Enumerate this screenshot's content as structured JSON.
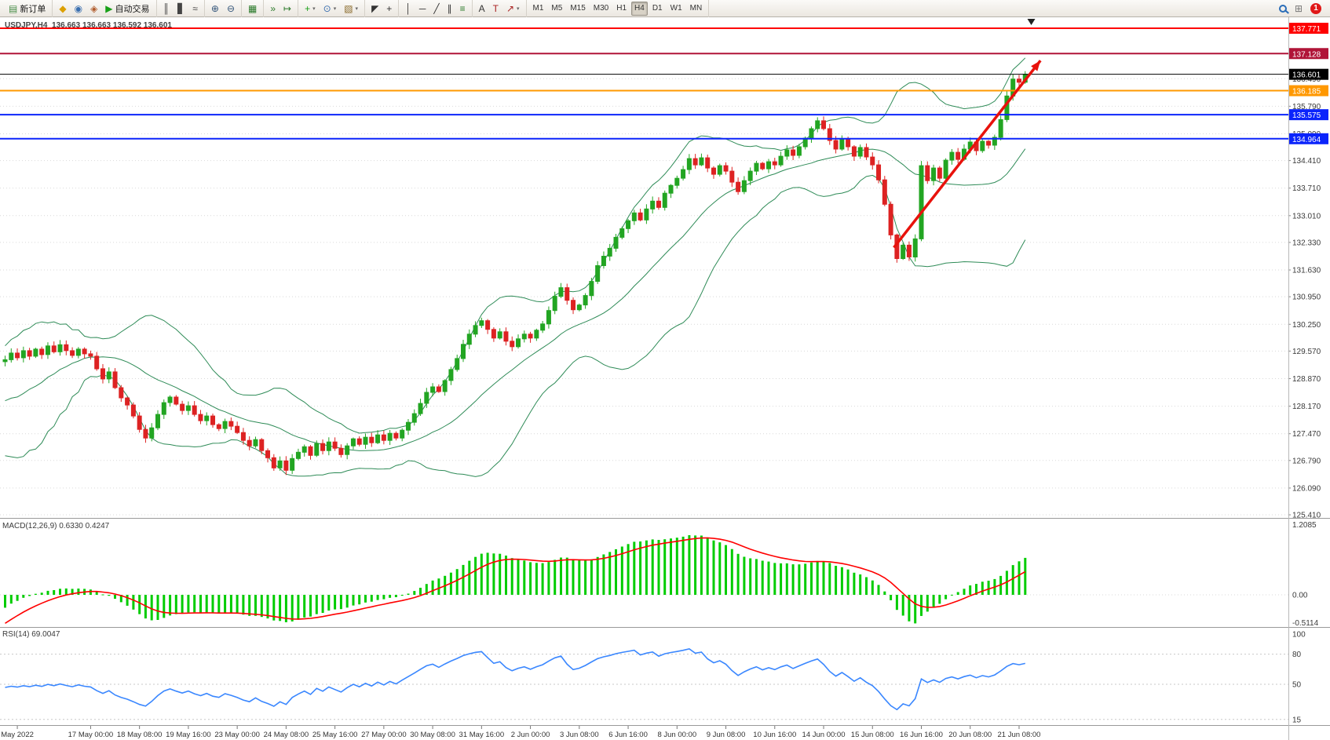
{
  "colors": {
    "bull": "#22a522",
    "bear": "#dd2222",
    "bollinger": "#2e8b57",
    "macd_hist": "#00cc00",
    "macd_signal": "#ff0000",
    "rsi_line": "#3a87ff",
    "arrow": "#e8120c",
    "grid": "#d9d9d9"
  },
  "toolbar": {
    "groups": [
      {
        "name": "toolbar-group-order",
        "items": [
          {
            "name": "new-order-button",
            "icon": "new-order-icon",
            "glyph": "▤",
            "color": "#4a8f4a",
            "label": "新订单"
          }
        ]
      },
      {
        "name": "toolbar-group-apps",
        "items": [
          {
            "name": "metaeditor-button",
            "icon": "metaeditor-icon",
            "glyph": "◆",
            "color": "#dca000"
          },
          {
            "name": "community-button",
            "icon": "community-icon",
            "glyph": "◉",
            "color": "#3a6fb0"
          },
          {
            "name": "market-button",
            "icon": "market-icon",
            "glyph": "◈",
            "color": "#b05a2a"
          },
          {
            "name": "autotrading-button",
            "icon": "autotrading-icon",
            "glyph": "▶",
            "color": "#18a018",
            "label": "自动交易"
          }
        ]
      },
      {
        "name": "toolbar-group-chart-type",
        "items": [
          {
            "name": "bar-chart-button",
            "icon": "bar-chart-icon",
            "glyph": "║",
            "color": "#444444"
          },
          {
            "name": "candlestick-chart-button",
            "icon": "candlestick-chart-icon",
            "glyph": "▋",
            "color": "#444444"
          },
          {
            "name": "line-chart-button",
            "icon": "line-chart-icon",
            "glyph": "≈",
            "color": "#444444"
          }
        ]
      },
      {
        "name": "toolbar-group-zoom",
        "items": [
          {
            "name": "zoom-in-button",
            "icon": "zoom-in-icon",
            "glyph": "⊕",
            "color": "#33557a"
          },
          {
            "name": "zoom-out-button",
            "icon": "zoom-out-icon",
            "glyph": "⊖",
            "color": "#33557a"
          }
        ]
      },
      {
        "name": "toolbar-group-windows",
        "items": [
          {
            "name": "tile-windows-button",
            "icon": "tile-windows-icon",
            "glyph": "▦",
            "color": "#2a7a2a"
          }
        ]
      },
      {
        "name": "toolbar-group-scroll",
        "items": [
          {
            "name": "auto-scroll-button",
            "icon": "auto-scroll-icon",
            "glyph": "»",
            "color": "#2a7a2a"
          },
          {
            "name": "chart-shift-button",
            "icon": "chart-shift-icon",
            "glyph": "↦",
            "color": "#2a7a2a"
          }
        ]
      },
      {
        "name": "toolbar-group-insert",
        "items": [
          {
            "name": "indicators-button",
            "icon": "indicators-icon",
            "glyph": "+",
            "color": "#18a018",
            "caret": true
          },
          {
            "name": "periods-button",
            "icon": "periods-icon",
            "glyph": "⊙",
            "color": "#3a6fb0",
            "caret": true
          },
          {
            "name": "templates-button",
            "icon": "templates-icon",
            "glyph": "▧",
            "color": "#8a6a2a",
            "caret": true
          }
        ]
      },
      {
        "name": "toolbar-group-cursor",
        "items": [
          {
            "name": "cursor-button",
            "icon": "cursor-icon",
            "glyph": "◤",
            "color": "#333333"
          },
          {
            "name": "crosshair-button",
            "icon": "crosshair-icon",
            "glyph": "+",
            "color": "#333333"
          }
        ]
      },
      {
        "name": "toolbar-group-lines",
        "items": [
          {
            "name": "vertical-line-button",
            "icon": "vertical-line-icon",
            "glyph": "│",
            "color": "#333333"
          },
          {
            "name": "horizontal-line-button",
            "icon": "horizontal-line-icon",
            "glyph": "─",
            "color": "#333333"
          },
          {
            "name": "trendline-button",
            "icon": "trendline-icon",
            "glyph": "╱",
            "color": "#333333"
          },
          {
            "name": "channel-button",
            "icon": "channel-icon",
            "glyph": "∥",
            "color": "#333333"
          },
          {
            "name": "fibonacci-button",
            "icon": "fibonacci-icon",
            "glyph": "≡",
            "color": "#2a7a2a"
          }
        ]
      },
      {
        "name": "toolbar-group-text",
        "items": [
          {
            "name": "text-button",
            "icon": "text-icon",
            "glyph": "A",
            "color": "#333333"
          },
          {
            "name": "label-button",
            "icon": "label-icon",
            "glyph": "T",
            "color": "#aa2222"
          },
          {
            "name": "arrows-button",
            "icon": "arrows-icon",
            "glyph": "↗",
            "color": "#aa2222",
            "caret": true
          }
        ]
      },
      {
        "name": "toolbar-group-timeframes",
        "items": [
          {
            "name": "tf-m1-button",
            "label": "M1"
          },
          {
            "name": "tf-m5-button",
            "label": "M5"
          },
          {
            "name": "tf-m15-button",
            "label": "M15"
          },
          {
            "name": "tf-m30-button",
            "label": "M30"
          },
          {
            "name": "tf-h1-button",
            "label": "H1"
          },
          {
            "name": "tf-h4-button",
            "label": "H4",
            "active": true
          },
          {
            "name": "tf-d1-button",
            "label": "D1"
          },
          {
            "name": "tf-w1-button",
            "label": "W1"
          },
          {
            "name": "tf-mn-button",
            "label": "MN"
          }
        ]
      },
      {
        "name": "toolbar-spacer",
        "spacer": true,
        "items": []
      },
      {
        "name": "toolbar-group-status",
        "items": [
          {
            "name": "search-button",
            "icon": "search-icon",
            "css": "magnifier"
          },
          {
            "name": "apps-grid-button",
            "icon": "apps-grid-icon",
            "glyph": "⊞",
            "color": "#777777"
          },
          {
            "name": "notifications-button",
            "icon": "notification-badge",
            "badge": "1"
          }
        ]
      }
    ]
  },
  "chart": {
    "symbol_info": "USDJPY,H4  136.663 136.663 136.592 136.601",
    "grid_labels": [
      "136.490",
      "135.790",
      "135.090",
      "134.410",
      "133.710",
      "133.010",
      "132.330",
      "131.630",
      "130.950",
      "130.250",
      "129.570",
      "128.870",
      "128.170",
      "127.470",
      "126.790",
      "126.090",
      "125.410"
    ]
  },
  "macd": {
    "label": "MACD(12,26,9) 0.6330 0.4247",
    "scale": [
      "1.2085",
      "0.00",
      "-0.5114"
    ]
  },
  "rsi": {
    "label": "RSI(14) 69.0047",
    "scale": [
      "100",
      "80",
      "50",
      "15"
    ],
    "levels": [
      80,
      50,
      15
    ]
  },
  "chart_data": {
    "type": "candlestick",
    "symbol": "USDJPY",
    "timeframe": "H4",
    "ylim": [
      125.41,
      137.771
    ],
    "closes": [
      129.35,
      129.52,
      129.4,
      129.58,
      129.44,
      129.62,
      129.48,
      129.7,
      129.55,
      129.73,
      129.58,
      129.46,
      129.62,
      129.5,
      129.44,
      129.12,
      128.86,
      129.04,
      128.64,
      128.38,
      128.2,
      127.92,
      127.58,
      127.36,
      127.62,
      127.96,
      128.26,
      128.4,
      128.22,
      128.06,
      128.18,
      127.96,
      127.8,
      127.92,
      127.7,
      127.6,
      127.78,
      127.66,
      127.5,
      127.3,
      127.16,
      127.32,
      127.04,
      126.86,
      126.6,
      126.78,
      126.54,
      126.84,
      127.0,
      127.14,
      126.92,
      127.22,
      127.04,
      127.26,
      127.1,
      126.94,
      127.16,
      127.34,
      127.2,
      127.38,
      127.24,
      127.44,
      127.3,
      127.48,
      127.36,
      127.56,
      127.76,
      127.98,
      128.24,
      128.52,
      128.66,
      128.54,
      128.82,
      129.1,
      129.38,
      129.74,
      130.0,
      130.22,
      130.34,
      130.12,
      129.9,
      130.06,
      129.82,
      129.68,
      129.88,
      130.0,
      129.9,
      130.1,
      130.26,
      130.6,
      130.96,
      131.18,
      130.86,
      130.62,
      130.74,
      130.98,
      131.34,
      131.74,
      131.98,
      132.18,
      132.46,
      132.68,
      132.88,
      133.08,
      132.9,
      133.18,
      133.38,
      133.22,
      133.58,
      133.78,
      133.96,
      134.18,
      134.46,
      134.3,
      134.48,
      134.22,
      134.06,
      134.28,
      134.14,
      133.86,
      133.62,
      133.9,
      134.14,
      134.34,
      134.2,
      134.38,
      134.3,
      134.52,
      134.68,
      134.54,
      134.76,
      134.98,
      135.22,
      135.42,
      135.22,
      134.92,
      134.7,
      134.96,
      134.76,
      134.52,
      134.74,
      134.5,
      134.3,
      133.92,
      133.3,
      132.52,
      131.92,
      132.26,
      131.96,
      132.42,
      134.28,
      133.9,
      134.22,
      133.96,
      134.42,
      134.62,
      134.44,
      134.7,
      134.88,
      134.66,
      134.9,
      134.8,
      135.0,
      135.45,
      136.05,
      136.48,
      136.4,
      136.601
    ],
    "history_seed": [
      131.6,
      130.85,
      131.2,
      130.2,
      129.45,
      130.0,
      128.9,
      128.2,
      128.8,
      127.8,
      127.3,
      128.1,
      127.5,
      127.1,
      127.9,
      127.4,
      128.2,
      127.7,
      128.5,
      128.1,
      128.8,
      129.2,
      128.7,
      129.3,
      128.9,
      129.3
    ],
    "indicators": [
      {
        "type": "bollinger",
        "period": 20,
        "deviation": 2
      },
      {
        "type": "macd",
        "fast": 12,
        "slow": 26,
        "signal": 9,
        "current_values": [
          0.633,
          0.4247
        ]
      },
      {
        "type": "rsi",
        "period": 14,
        "current_value": 69.0047
      }
    ],
    "horizontal_lines": [
      {
        "price": 137.771,
        "label": "137.771",
        "color": "#fe0000",
        "width": 2
      },
      {
        "price": 137.128,
        "label": "137.128",
        "color": "#b01438",
        "width": 2
      },
      {
        "price": 136.601,
        "label": "136.601",
        "color": "#000000",
        "width": 1
      },
      {
        "price": 136.185,
        "label": "136.185",
        "color": "#ff9800",
        "width": 2
      },
      {
        "price": 135.575,
        "label": "135.575",
        "color": "#0b24fb",
        "width": 2
      },
      {
        "price": 134.964,
        "label": "134.964",
        "color": "#0b24fb",
        "width": 2
      }
    ],
    "trend_arrow": {
      "from": {
        "index": 145.5,
        "price": 132.2
      },
      "to": {
        "index": 169.5,
        "price": 136.95
      }
    },
    "shift_marker_index": 168,
    "x_ticks": [
      {
        "i": 2,
        "label": "May 2022"
      },
      {
        "i": 14,
        "label": "17 May 00:00"
      },
      {
        "i": 22,
        "label": "18 May 08:00"
      },
      {
        "i": 30,
        "label": "19 May 16:00"
      },
      {
        "i": 38,
        "label": "23 May 00:00"
      },
      {
        "i": 46,
        "label": "24 May 08:00"
      },
      {
        "i": 54,
        "label": "25 May 16:00"
      },
      {
        "i": 62,
        "label": "27 May 00:00"
      },
      {
        "i": 70,
        "label": "30 May 08:00"
      },
      {
        "i": 78,
        "label": "31 May 16:00"
      },
      {
        "i": 86,
        "label": "2 Jun 00:00"
      },
      {
        "i": 94,
        "label": "3 Jun 08:00"
      },
      {
        "i": 102,
        "label": "6 Jun 16:00"
      },
      {
        "i": 110,
        "label": "8 Jun 00:00"
      },
      {
        "i": 118,
        "label": "9 Jun 08:00"
      },
      {
        "i": 126,
        "label": "10 Jun 16:00"
      },
      {
        "i": 134,
        "label": "14 Jun 00:00"
      },
      {
        "i": 142,
        "label": "15 Jun 08:00"
      },
      {
        "i": 150,
        "label": "16 Jun 16:00"
      },
      {
        "i": 158,
        "label": "20 Jun 08:00"
      },
      {
        "i": 166,
        "label": "21 Jun 08:00"
      }
    ]
  }
}
